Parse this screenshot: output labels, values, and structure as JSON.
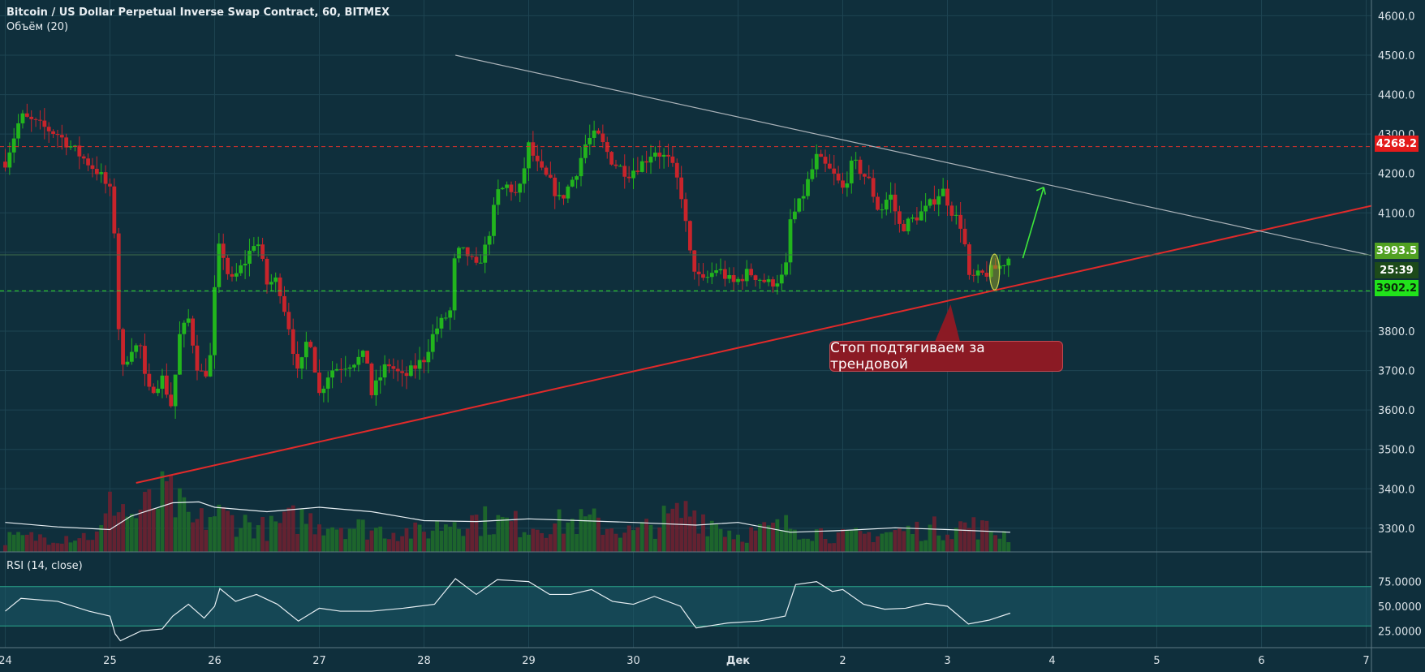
{
  "header": {
    "title": "Bitcoin / US Dollar Perpetual Inverse Swap Contract, 60, BITMEX",
    "volume_label": "Объём (20)",
    "rsi_label": "RSI (14, close)"
  },
  "colors": {
    "background": "#0f2f3c",
    "up": "#22b51d",
    "down": "#c8242b",
    "trendline_support": "#e02a2a",
    "trendline_resistance": "#aab2b8",
    "resistance_line": "#d9312b",
    "support_line": "#2ee028"
  },
  "price_axis": {
    "ticks": [
      "4600.0",
      "4500.0",
      "4400.0",
      "4300.0",
      "4200.0",
      "4100.0",
      "4000.0",
      "3900.0",
      "3800.0",
      "3700.0",
      "3600.0",
      "3500.0",
      "3400.0",
      "3300.0"
    ],
    "range": [
      3240,
      4640
    ]
  },
  "rsi_axis": {
    "ticks": [
      "75.0000",
      "50.0000",
      "25.0000"
    ],
    "range": [
      8,
      92
    ],
    "band": [
      30,
      70
    ]
  },
  "time_axis": {
    "labels": [
      "24",
      "25",
      "26",
      "27",
      "28",
      "29",
      "30",
      "Дек",
      "2",
      "3",
      "4",
      "5",
      "6",
      "7"
    ]
  },
  "markers": {
    "resistance_level": "4268.2",
    "current_price": "3993.5",
    "timer": "25:39",
    "support_level": "3902.2"
  },
  "annotation": {
    "callout": "Стоп подтягиваем за трендовой"
  },
  "chart_data": {
    "type": "candlestick",
    "instrument": "Bitcoin / US Dollar Perpetual Inverse Swap Contract",
    "interval": "60",
    "exchange": "BITMEX",
    "x_unit": "days from Nov 24, 00:00",
    "x_range": [
      -0.05,
      13.05
    ],
    "y_range": [
      3240,
      4640
    ],
    "horizontal_levels": [
      {
        "value": 4268.2,
        "style": "dashed",
        "color": "#d9312b"
      },
      {
        "value": 3902.2,
        "style": "dashed",
        "color": "#2ee028"
      }
    ],
    "trendlines": [
      {
        "name": "support",
        "from": {
          "x": 1.25,
          "y": 3415
        },
        "to": {
          "x": 13.05,
          "y": 4118
        }
      },
      {
        "name": "resistance",
        "from": {
          "x": 4.3,
          "y": 4500
        },
        "to": {
          "x": 13.05,
          "y": 3992
        }
      }
    ],
    "anchors": [
      {
        "x": 0.0,
        "y": 4230
      },
      {
        "x": 0.15,
        "y": 4345
      },
      {
        "x": 0.5,
        "y": 4300
      },
      {
        "x": 0.9,
        "y": 4200
      },
      {
        "x": 1.03,
        "y": 4140
      },
      {
        "x": 1.07,
        "y": 3850
      },
      {
        "x": 1.12,
        "y": 3700
      },
      {
        "x": 1.2,
        "y": 3760
      },
      {
        "x": 1.3,
        "y": 3760
      },
      {
        "x": 1.35,
        "y": 3640
      },
      {
        "x": 1.5,
        "y": 3680
      },
      {
        "x": 1.6,
        "y": 3600
      },
      {
        "x": 1.65,
        "y": 3780
      },
      {
        "x": 1.75,
        "y": 3830
      },
      {
        "x": 1.85,
        "y": 3690
      },
      {
        "x": 1.95,
        "y": 3700
      },
      {
        "x": 2.0,
        "y": 3900
      },
      {
        "x": 2.05,
        "y": 4030
      },
      {
        "x": 2.15,
        "y": 3920
      },
      {
        "x": 2.3,
        "y": 3980
      },
      {
        "x": 2.4,
        "y": 4040
      },
      {
        "x": 2.5,
        "y": 3920
      },
      {
        "x": 2.6,
        "y": 3930
      },
      {
        "x": 2.72,
        "y": 3800
      },
      {
        "x": 2.8,
        "y": 3680
      },
      {
        "x": 2.9,
        "y": 3800
      },
      {
        "x": 3.0,
        "y": 3640
      },
      {
        "x": 3.1,
        "y": 3700
      },
      {
        "x": 3.3,
        "y": 3720
      },
      {
        "x": 3.45,
        "y": 3740
      },
      {
        "x": 3.5,
        "y": 3640
      },
      {
        "x": 3.65,
        "y": 3720
      },
      {
        "x": 3.8,
        "y": 3680
      },
      {
        "x": 4.0,
        "y": 3730
      },
      {
        "x": 4.1,
        "y": 3800
      },
      {
        "x": 4.25,
        "y": 3850
      },
      {
        "x": 4.3,
        "y": 4000
      },
      {
        "x": 4.4,
        "y": 4000
      },
      {
        "x": 4.5,
        "y": 3960
      },
      {
        "x": 4.6,
        "y": 4020
      },
      {
        "x": 4.7,
        "y": 4150
      },
      {
        "x": 4.8,
        "y": 4170
      },
      {
        "x": 4.9,
        "y": 4140
      },
      {
        "x": 5.0,
        "y": 4270
      },
      {
        "x": 5.1,
        "y": 4210
      },
      {
        "x": 5.2,
        "y": 4180
      },
      {
        "x": 5.3,
        "y": 4130
      },
      {
        "x": 5.45,
        "y": 4200
      },
      {
        "x": 5.55,
        "y": 4280
      },
      {
        "x": 5.65,
        "y": 4300
      },
      {
        "x": 5.8,
        "y": 4230
      },
      {
        "x": 5.95,
        "y": 4200
      },
      {
        "x": 6.1,
        "y": 4230
      },
      {
        "x": 6.2,
        "y": 4260
      },
      {
        "x": 6.35,
        "y": 4230
      },
      {
        "x": 6.45,
        "y": 4160
      },
      {
        "x": 6.55,
        "y": 3980
      },
      {
        "x": 6.65,
        "y": 3920
      },
      {
        "x": 6.8,
        "y": 3960
      },
      {
        "x": 6.95,
        "y": 3920
      },
      {
        "x": 7.1,
        "y": 3950
      },
      {
        "x": 7.3,
        "y": 3920
      },
      {
        "x": 7.45,
        "y": 3940
      },
      {
        "x": 7.5,
        "y": 4080
      },
      {
        "x": 7.6,
        "y": 4130
      },
      {
        "x": 7.75,
        "y": 4240
      },
      {
        "x": 7.9,
        "y": 4200
      },
      {
        "x": 8.0,
        "y": 4160
      },
      {
        "x": 8.1,
        "y": 4230
      },
      {
        "x": 8.25,
        "y": 4180
      },
      {
        "x": 8.35,
        "y": 4100
      },
      {
        "x": 8.45,
        "y": 4150
      },
      {
        "x": 8.55,
        "y": 4060
      },
      {
        "x": 8.65,
        "y": 4080
      },
      {
        "x": 8.8,
        "y": 4110
      },
      {
        "x": 8.95,
        "y": 4160
      },
      {
        "x": 9.05,
        "y": 4100
      },
      {
        "x": 9.15,
        "y": 4060
      },
      {
        "x": 9.2,
        "y": 3930
      },
      {
        "x": 9.3,
        "y": 3940
      },
      {
        "x": 9.4,
        "y": 3950
      },
      {
        "x": 9.5,
        "y": 3965
      },
      {
        "x": 9.6,
        "y": 3990
      }
    ],
    "volume_anchors": [
      {
        "x": 0.0,
        "y": 0.18
      },
      {
        "x": 0.9,
        "y": 0.22
      },
      {
        "x": 1.05,
        "y": 0.75
      },
      {
        "x": 1.2,
        "y": 0.45
      },
      {
        "x": 1.55,
        "y": 0.75
      },
      {
        "x": 1.8,
        "y": 0.35
      },
      {
        "x": 2.0,
        "y": 0.5
      },
      {
        "x": 2.5,
        "y": 0.3
      },
      {
        "x": 2.8,
        "y": 0.45
      },
      {
        "x": 3.0,
        "y": 0.4
      },
      {
        "x": 3.5,
        "y": 0.3
      },
      {
        "x": 4.0,
        "y": 0.25
      },
      {
        "x": 4.3,
        "y": 0.45
      },
      {
        "x": 5.0,
        "y": 0.35
      },
      {
        "x": 5.6,
        "y": 0.4
      },
      {
        "x": 6.0,
        "y": 0.25
      },
      {
        "x": 6.55,
        "y": 0.55
      },
      {
        "x": 7.0,
        "y": 0.22
      },
      {
        "x": 7.5,
        "y": 0.35
      },
      {
        "x": 8.0,
        "y": 0.2
      },
      {
        "x": 9.2,
        "y": 0.35
      },
      {
        "x": 9.6,
        "y": 0.22
      }
    ],
    "volume_ma": [
      {
        "x": 0.0,
        "y": 0.33
      },
      {
        "x": 0.5,
        "y": 0.28
      },
      {
        "x": 1.0,
        "y": 0.25
      },
      {
        "x": 1.2,
        "y": 0.4
      },
      {
        "x": 1.6,
        "y": 0.55
      },
      {
        "x": 1.85,
        "y": 0.56
      },
      {
        "x": 2.0,
        "y": 0.5
      },
      {
        "x": 2.5,
        "y": 0.45
      },
      {
        "x": 3.0,
        "y": 0.5
      },
      {
        "x": 3.5,
        "y": 0.45
      },
      {
        "x": 4.0,
        "y": 0.35
      },
      {
        "x": 4.5,
        "y": 0.34
      },
      {
        "x": 5.0,
        "y": 0.37
      },
      {
        "x": 5.5,
        "y": 0.35
      },
      {
        "x": 6.0,
        "y": 0.33
      },
      {
        "x": 6.6,
        "y": 0.3
      },
      {
        "x": 7.0,
        "y": 0.33
      },
      {
        "x": 7.5,
        "y": 0.22
      },
      {
        "x": 8.0,
        "y": 0.24
      },
      {
        "x": 8.5,
        "y": 0.27
      },
      {
        "x": 9.0,
        "y": 0.25
      },
      {
        "x": 9.6,
        "y": 0.22
      }
    ],
    "rsi": [
      {
        "x": 0.0,
        "y": 45
      },
      {
        "x": 0.15,
        "y": 58
      },
      {
        "x": 0.5,
        "y": 55
      },
      {
        "x": 0.8,
        "y": 45
      },
      {
        "x": 1.0,
        "y": 40
      },
      {
        "x": 1.05,
        "y": 22
      },
      {
        "x": 1.1,
        "y": 15
      },
      {
        "x": 1.3,
        "y": 25
      },
      {
        "x": 1.5,
        "y": 27
      },
      {
        "x": 1.6,
        "y": 40
      },
      {
        "x": 1.75,
        "y": 52
      },
      {
        "x": 1.9,
        "y": 38
      },
      {
        "x": 2.0,
        "y": 50
      },
      {
        "x": 2.05,
        "y": 68
      },
      {
        "x": 2.2,
        "y": 55
      },
      {
        "x": 2.4,
        "y": 62
      },
      {
        "x": 2.6,
        "y": 52
      },
      {
        "x": 2.8,
        "y": 35
      },
      {
        "x": 3.0,
        "y": 48
      },
      {
        "x": 3.2,
        "y": 45
      },
      {
        "x": 3.5,
        "y": 45
      },
      {
        "x": 3.8,
        "y": 48
      },
      {
        "x": 4.1,
        "y": 52
      },
      {
        "x": 4.3,
        "y": 78
      },
      {
        "x": 4.5,
        "y": 62
      },
      {
        "x": 4.7,
        "y": 77
      },
      {
        "x": 5.0,
        "y": 75
      },
      {
        "x": 5.2,
        "y": 62
      },
      {
        "x": 5.4,
        "y": 62
      },
      {
        "x": 5.6,
        "y": 67
      },
      {
        "x": 5.8,
        "y": 55
      },
      {
        "x": 6.0,
        "y": 52
      },
      {
        "x": 6.2,
        "y": 60
      },
      {
        "x": 6.45,
        "y": 50
      },
      {
        "x": 6.55,
        "y": 35
      },
      {
        "x": 6.6,
        "y": 28
      },
      {
        "x": 6.9,
        "y": 33
      },
      {
        "x": 7.2,
        "y": 35
      },
      {
        "x": 7.45,
        "y": 40
      },
      {
        "x": 7.55,
        "y": 72
      },
      {
        "x": 7.75,
        "y": 75
      },
      {
        "x": 7.9,
        "y": 65
      },
      {
        "x": 8.0,
        "y": 67
      },
      {
        "x": 8.2,
        "y": 52
      },
      {
        "x": 8.4,
        "y": 47
      },
      {
        "x": 8.6,
        "y": 48
      },
      {
        "x": 8.8,
        "y": 53
      },
      {
        "x": 9.0,
        "y": 50
      },
      {
        "x": 9.2,
        "y": 32
      },
      {
        "x": 9.4,
        "y": 36
      },
      {
        "x": 9.6,
        "y": 43
      }
    ]
  }
}
